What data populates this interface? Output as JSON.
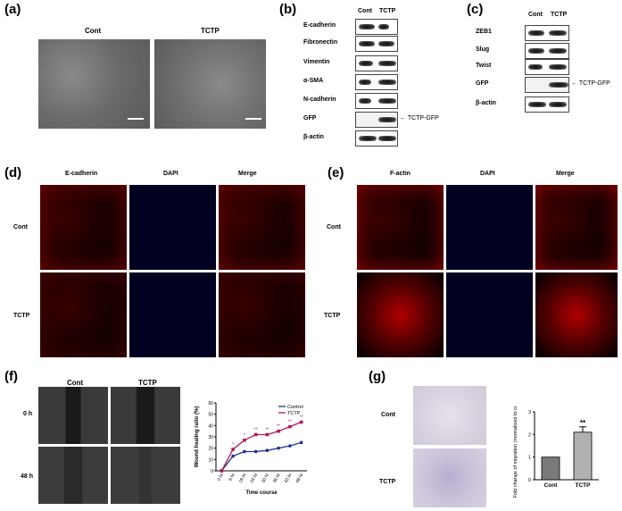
{
  "panels": {
    "a": {
      "label": "(a)",
      "cols": [
        "Cont",
        "TCTP"
      ]
    },
    "b": {
      "label": "(b)",
      "cols": [
        "Cont",
        "TCTP"
      ],
      "rows": [
        "E-cadherin",
        "Fibronectin",
        "Vimentin",
        "α-SMA",
        "N-cadherin",
        "GFP",
        "β-actin"
      ],
      "arrow_label": "TCTP-GFP"
    },
    "c": {
      "label": "(c)",
      "cols": [
        "Cont",
        "TCTP"
      ],
      "rows": [
        "ZEB1",
        "Slug",
        "Twist",
        "GFP",
        "β-actin"
      ],
      "arrow_label": "TCTP-GFP"
    },
    "d": {
      "label": "(d)",
      "cols": [
        "E-cadherin",
        "DAPI",
        "Merge"
      ],
      "rows": [
        "Cont",
        "TCTP"
      ]
    },
    "e": {
      "label": "(e)",
      "cols": [
        "F-actin",
        "DAPI",
        "Merge"
      ],
      "rows": [
        "Cont",
        "TCTP"
      ]
    },
    "f": {
      "label": "(f)",
      "cols": [
        "Cont",
        "TCTP"
      ],
      "rows": [
        "0 h",
        "48 h"
      ]
    },
    "g": {
      "label": "(g)",
      "rows": [
        "Cont",
        "TCTP"
      ]
    }
  },
  "chart_data": [
    {
      "type": "line",
      "xlabel": "Time course",
      "ylabel": "Wound healing ratio (%)",
      "categories": [
        "0 hr",
        "6 hr",
        "18 hr",
        "24 hr",
        "30 hr",
        "36 hr",
        "42 hr",
        "48 hr"
      ],
      "ylim": [
        0,
        60
      ],
      "yticks": [
        "0",
        "10",
        "20",
        "30",
        "40",
        "50",
        "60"
      ],
      "series": [
        {
          "name": "Control",
          "color": "#1f2f8f",
          "values": [
            0,
            13,
            17,
            17,
            18,
            20,
            22,
            25
          ]
        },
        {
          "name": "TCTP",
          "color": "#b0195a",
          "values": [
            0,
            19,
            27,
            32,
            32,
            35,
            39,
            43
          ]
        }
      ],
      "annotations": [
        "*",
        "*",
        "**",
        "**",
        "**",
        "**",
        "**"
      ],
      "legend": "top-right"
    },
    {
      "type": "bar",
      "ylabel": "Fold change of migration (normalized to control)",
      "categories": [
        "Cont",
        "TCTP"
      ],
      "values": [
        1,
        2.1
      ],
      "ylim": [
        0,
        3
      ],
      "yticks": [
        "0",
        "1",
        "2",
        "3"
      ],
      "annotations": [
        "",
        "**"
      ]
    }
  ]
}
